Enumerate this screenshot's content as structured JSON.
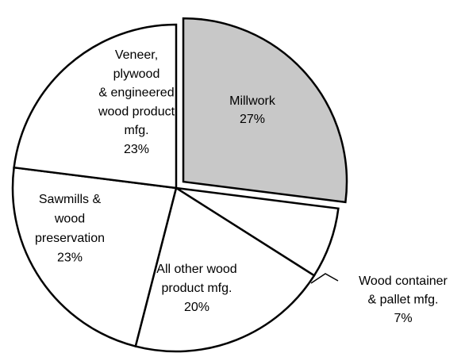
{
  "chart_data": {
    "type": "pie",
    "categories": [
      "Millwork",
      "Wood container\n& pallet mfg.",
      "All other wood\nproduct mfg.",
      "Sawmills &\nwood\npreservation",
      "Veneer,\nplywood\n& engineered\nwood product\nmfg."
    ],
    "values": [
      27,
      7,
      20,
      23,
      23
    ],
    "value_labels": [
      "27%",
      "7%",
      "20%",
      "23%",
      "23%"
    ],
    "colors": [
      "#c8c8c8",
      "#ffffff",
      "#ffffff",
      "#ffffff",
      "#ffffff"
    ],
    "exploded": [
      true,
      false,
      false,
      false,
      false
    ]
  }
}
